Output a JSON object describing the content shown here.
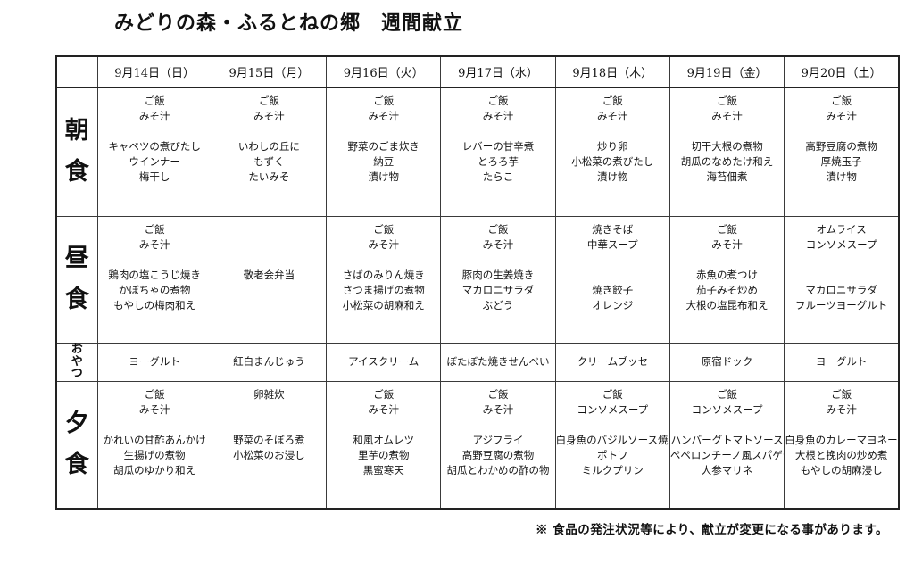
{
  "title": "みどりの森・ふるとねの郷　週間献立",
  "footnote": "※ 食品の発注状況等により、献立が変更になる事があります。",
  "table": {
    "corner": "",
    "day_headers": [
      "9月14日（日）",
      "9月15日（月）",
      "9月16日（火）",
      "9月17日（水）",
      "9月18日（木）",
      "9月19日（金）",
      "9月20日（土）"
    ],
    "rows": [
      {
        "id": "breakfast",
        "label_chars": [
          "朝",
          "食"
        ],
        "label_size": "large",
        "center": false,
        "cells": [
          [
            "ご飯",
            "みそ汁",
            "",
            "キャベツの煮びたし",
            "ウインナー",
            "梅干し"
          ],
          [
            "ご飯",
            "みそ汁",
            "",
            "いわしの丘に",
            "もずく",
            "たいみそ"
          ],
          [
            "ご飯",
            "みそ汁",
            "",
            "野菜のごま炊き",
            "納豆",
            "漬け物"
          ],
          [
            "ご飯",
            "みそ汁",
            "",
            "レバーの甘辛煮",
            "とろろ芋",
            "たらこ"
          ],
          [
            "ご飯",
            "みそ汁",
            "",
            "炒り卵",
            "小松菜の煮びたし",
            "漬け物"
          ],
          [
            "ご飯",
            "みそ汁",
            "",
            "切干大根の煮物",
            "胡瓜のなめたけ和え",
            "海苔佃煮"
          ],
          [
            "ご飯",
            "みそ汁",
            "",
            "高野豆腐の煮物",
            "厚焼玉子",
            "漬け物"
          ]
        ]
      },
      {
        "id": "lunch",
        "label_chars": [
          "昼",
          "食"
        ],
        "label_size": "large",
        "center": false,
        "cells": [
          [
            "ご飯",
            "みそ汁",
            "",
            "鶏肉の塩こうじ焼き",
            "かぼちゃの煮物",
            "もやしの梅肉和え"
          ],
          [
            "",
            "",
            "",
            "敬老会弁当",
            "",
            ""
          ],
          [
            "ご飯",
            "みそ汁",
            "",
            "さばのみりん焼き",
            "さつま揚げの煮物",
            "小松菜の胡麻和え"
          ],
          [
            "ご飯",
            "みそ汁",
            "",
            "豚肉の生姜焼き",
            "マカロニサラダ",
            "ぶどう"
          ],
          [
            "焼きそば",
            "中華スープ",
            "",
            "",
            "焼き餃子",
            "オレンジ"
          ],
          [
            "ご飯",
            "みそ汁",
            "",
            "赤魚の煮つけ",
            "茄子みそ炒め",
            "大根の塩昆布和え"
          ],
          [
            "オムライス",
            "コンソメスープ",
            "",
            "",
            "マカロニサラダ",
            "フルーツヨーグルト"
          ]
        ]
      },
      {
        "id": "snack",
        "label_chars": [
          "お",
          "や",
          "つ"
        ],
        "label_size": "small",
        "center": true,
        "cells": [
          [
            "ヨーグルト"
          ],
          [
            "紅白まんじゅう"
          ],
          [
            "アイスクリーム"
          ],
          [
            "ぼたぼた焼きせんべい"
          ],
          [
            "クリームブッセ"
          ],
          [
            "原宿ドック"
          ],
          [
            "ヨーグルト"
          ]
        ]
      },
      {
        "id": "dinner",
        "label_chars": [
          "夕",
          "食"
        ],
        "label_size": "large",
        "center": false,
        "cells": [
          [
            "ご飯",
            "みそ汁",
            "",
            "かれいの甘酢あんかけ",
            "生揚げの煮物",
            "胡瓜のゆかり和え"
          ],
          [
            "卵雑炊",
            "",
            "",
            "野菜のそぼろ煮",
            "小松菜のお浸し",
            ""
          ],
          [
            "ご飯",
            "みそ汁",
            "",
            "和風オムレツ",
            "里芋の煮物",
            "黒蜜寒天"
          ],
          [
            "ご飯",
            "みそ汁",
            "",
            "アジフライ",
            "高野豆腐の煮物",
            "胡瓜とわかめの酢の物"
          ],
          [
            "ご飯",
            "コンソメスープ",
            "",
            "白身魚のバジルソース焼き",
            "ポトフ",
            "ミルクプリン"
          ],
          [
            "ご飯",
            "コンソメスープ",
            "",
            "ハンバーグトマトソース",
            "ペペロンチーノ風スパゲティ",
            "人参マリネ"
          ],
          [
            "ご飯",
            "みそ汁",
            "",
            "白身魚のカレーマヨネーズ焼き",
            "大根と挽肉の炒め煮",
            "もやしの胡麻浸し"
          ]
        ]
      }
    ]
  }
}
